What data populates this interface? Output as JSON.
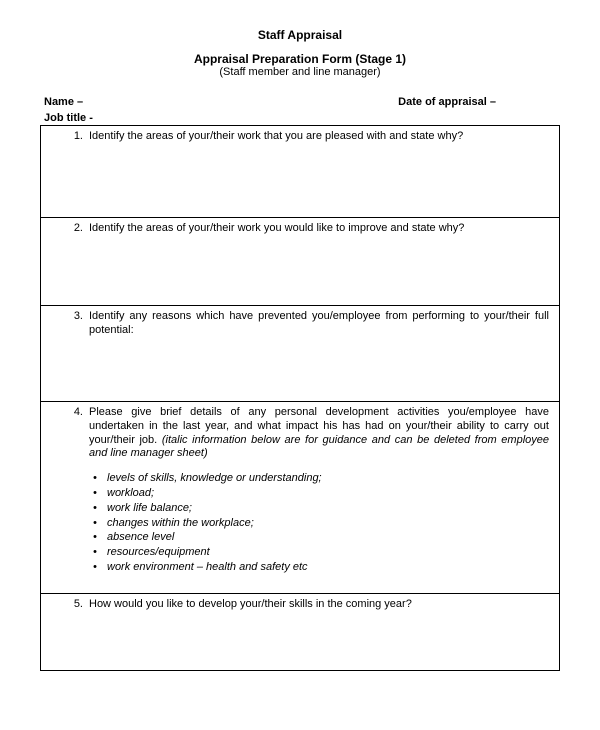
{
  "header": {
    "title1": "Staff Appraisal",
    "title2": "Appraisal Preparation Form (Stage 1)",
    "subtitle": "(Staff member and line manager)"
  },
  "meta": {
    "name_label": "Name –",
    "date_label": "Date of appraisal –",
    "job_title_label": "Job title -"
  },
  "questions": {
    "q1": {
      "num": "1.",
      "text": "Identify the areas of your/their work that you are pleased with and state why?"
    },
    "q2": {
      "num": "2.",
      "text": "Identify the areas of your/their work you would like to improve and state why?"
    },
    "q3": {
      "num": "3.",
      "text": "Identify any reasons which have prevented you/employee from performing to your/their full potential:"
    },
    "q4": {
      "num": "4.",
      "text": "Please give brief details of any personal development activities you/employee have undertaken in the last year, and what impact his has had on your/their ability to carry out your/their job. ",
      "italic": "(italic information below are for guidance and can be deleted from employee and line manager sheet)"
    },
    "q5": {
      "num": "5.",
      "text": "How would you like to develop your/their skills in the coming year?"
    }
  },
  "bullets": {
    "b1": "levels of skills, knowledge or understanding;",
    "b2": "workload;",
    "b3": "work life balance;",
    "b4": "changes within the workplace;",
    "b5": "absence level",
    "b6": "resources/equipment",
    "b7": "work environment – health and safety etc"
  }
}
